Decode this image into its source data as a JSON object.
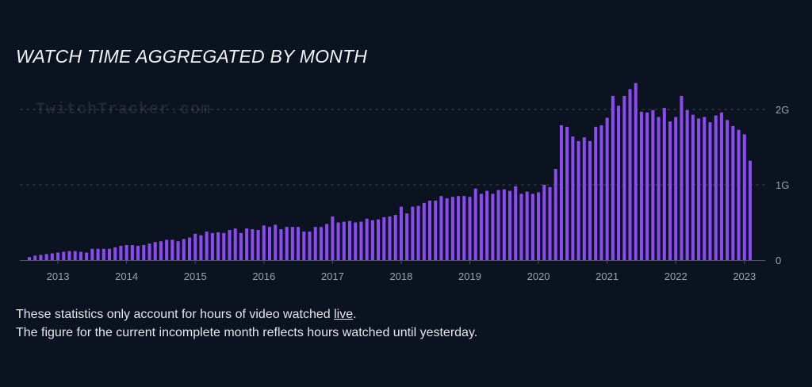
{
  "title": "WATCH TIME AGGREGATED BY MONTH",
  "watermark": "TwitchTracker.com",
  "notes": {
    "line1_before": "These statistics only account for hours of video watched ",
    "line1_link": "live",
    "line1_after": ".",
    "line2": "The figure for the current incomplete month reflects hours watched until yesterday."
  },
  "colors": {
    "bar": "#8b4bf0",
    "background": "#0b1220",
    "grid": "#3a4252"
  },
  "chart_data": {
    "type": "bar",
    "title": "WATCH TIME AGGREGATED BY MONTH",
    "xlabel": "",
    "ylabel": "",
    "x_start": "2012-08",
    "x_end": "2023-01",
    "x_ticks": [
      "2013",
      "2014",
      "2015",
      "2016",
      "2017",
      "2018",
      "2019",
      "2020",
      "2021",
      "2022",
      "2023"
    ],
    "y_ticks": [
      0,
      1000000000,
      2000000000
    ],
    "y_tick_labels": [
      "0",
      "1G",
      "2G"
    ],
    "ylim": [
      0,
      2400000000
    ],
    "grid": "horizontal dashed",
    "legend": "none",
    "values_G": [
      0.04,
      0.06,
      0.07,
      0.08,
      0.09,
      0.1,
      0.11,
      0.12,
      0.12,
      0.11,
      0.1,
      0.15,
      0.15,
      0.15,
      0.15,
      0.17,
      0.19,
      0.2,
      0.2,
      0.19,
      0.2,
      0.22,
      0.24,
      0.25,
      0.27,
      0.27,
      0.25,
      0.28,
      0.3,
      0.35,
      0.33,
      0.38,
      0.36,
      0.37,
      0.36,
      0.4,
      0.42,
      0.36,
      0.42,
      0.41,
      0.4,
      0.46,
      0.44,
      0.47,
      0.41,
      0.44,
      0.44,
      0.44,
      0.38,
      0.38,
      0.44,
      0.44,
      0.48,
      0.58,
      0.5,
      0.51,
      0.52,
      0.5,
      0.51,
      0.55,
      0.53,
      0.54,
      0.57,
      0.58,
      0.6,
      0.71,
      0.62,
      0.71,
      0.72,
      0.76,
      0.79,
      0.79,
      0.85,
      0.82,
      0.84,
      0.85,
      0.85,
      0.84,
      0.95,
      0.88,
      0.92,
      0.88,
      0.93,
      0.94,
      0.92,
      0.98,
      0.88,
      0.91,
      0.88,
      0.9,
      1.0,
      0.97,
      1.21,
      1.79,
      1.77,
      1.64,
      1.58,
      1.63,
      1.58,
      1.77,
      1.79,
      1.89,
      2.18,
      2.05,
      2.18,
      2.27,
      2.35,
      1.97,
      1.96,
      1.99,
      1.9,
      2.02,
      1.84,
      1.9,
      2.18,
      1.99,
      1.93,
      1.88,
      1.9,
      1.83,
      1.92,
      1.96,
      1.86,
      1.78,
      1.73,
      1.67,
      1.32
    ]
  }
}
